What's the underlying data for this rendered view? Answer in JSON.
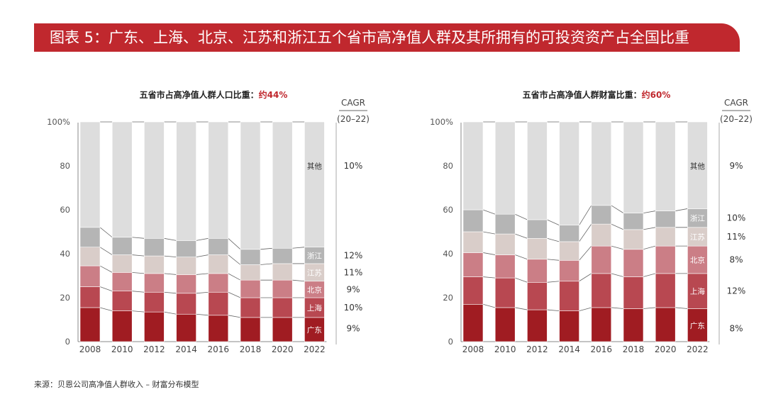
{
  "header": {
    "title": "图表 5：广东、上海、北京、江苏和浙江五个省市高净值人群及其所拥有的可投资资产占全国比重"
  },
  "footer": {
    "source": "来源：贝恩公司高净值人群收入 – 财富分布模型"
  },
  "colors": {
    "banner": "#c0282e",
    "accent_text": "#c0282e",
    "guangdong": "#a01c22",
    "shanghai": "#b84851",
    "beijing": "#cb7e86",
    "jiangsu": "#d9cdc9",
    "zhejiang": "#b5b5b5",
    "others": "#dddddd"
  },
  "chart_data": [
    {
      "type": "bar",
      "stacked": true,
      "title_prefix": "五省市占高净值人群人口比重：",
      "title_highlight": "约44%",
      "categories": [
        "2008",
        "2010",
        "2012",
        "2014",
        "2016",
        "2018",
        "2020",
        "2022"
      ],
      "ylim": [
        0,
        100
      ],
      "yticks": [
        "0",
        "20",
        "40",
        "60",
        "80",
        "100%"
      ],
      "cagr_header": [
        "CAGR",
        "(20–22)"
      ],
      "series": [
        {
          "name": "广东",
          "values": [
            15.5,
            14,
            13.5,
            12.5,
            12,
            11,
            11,
            11
          ],
          "cagr": "9%"
        },
        {
          "name": "上海",
          "values": [
            9.5,
            9,
            9,
            9.5,
            10.5,
            9,
            9,
            9
          ],
          "cagr": "10%"
        },
        {
          "name": "北京",
          "values": [
            9.5,
            8.5,
            8.5,
            8.5,
            8.5,
            8,
            8,
            7.5
          ],
          "cagr": "9%"
        },
        {
          "name": "江苏",
          "values": [
            8.5,
            8,
            8,
            8,
            8.5,
            7,
            7.5,
            8
          ],
          "cagr": "11%"
        },
        {
          "name": "浙江",
          "values": [
            9,
            8,
            8,
            7.5,
            7.5,
            7,
            7,
            7.5
          ],
          "cagr": "12%"
        },
        {
          "name": "其他",
          "values": [
            48,
            52.5,
            53,
            54,
            53,
            58,
            57.5,
            57
          ],
          "cagr": "10%"
        }
      ]
    },
    {
      "type": "bar",
      "stacked": true,
      "title_prefix": "五省市占高净值人群财富比重：",
      "title_highlight": "约60%",
      "categories": [
        "2008",
        "2010",
        "2012",
        "2014",
        "2016",
        "2018",
        "2020",
        "2022"
      ],
      "ylim": [
        0,
        100
      ],
      "yticks": [
        "0",
        "20",
        "40",
        "60",
        "80",
        "100%"
      ],
      "cagr_header": [
        "CAGR",
        "(20–22)"
      ],
      "series": [
        {
          "name": "广东",
          "values": [
            17,
            15.5,
            14.5,
            14,
            15.5,
            15,
            15.5,
            15
          ],
          "cagr": "8%"
        },
        {
          "name": "上海",
          "values": [
            12.5,
            13.5,
            12.5,
            13.5,
            15.5,
            14.5,
            15.5,
            16
          ],
          "cagr": "12%"
        },
        {
          "name": "北京",
          "values": [
            11,
            10.5,
            10.5,
            9.5,
            12.5,
            12.5,
            12.5,
            12.5
          ],
          "cagr": "8%"
        },
        {
          "name": "江苏",
          "values": [
            9.5,
            9.5,
            9.5,
            8.5,
            10,
            9,
            8.5,
            8.5
          ],
          "cagr": "11%"
        },
        {
          "name": "浙江",
          "values": [
            10,
            9,
            8.5,
            7.5,
            8.5,
            7.5,
            7.5,
            8.5
          ],
          "cagr": "10%"
        },
        {
          "name": "其他",
          "values": [
            40,
            42,
            44.5,
            47,
            38,
            41.5,
            40.5,
            39.5
          ],
          "cagr": "9%"
        }
      ]
    }
  ]
}
